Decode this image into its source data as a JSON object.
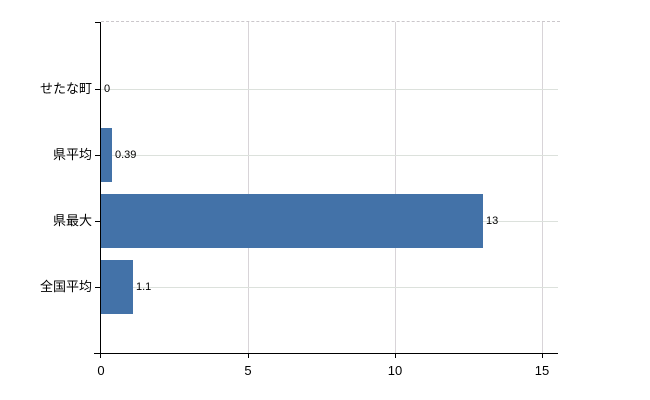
{
  "chart_data": {
    "type": "bar",
    "orientation": "horizontal",
    "title": "",
    "xlabel": "",
    "ylabel": "",
    "categories": [
      "せたな町",
      "県平均",
      "県最大",
      "全国平均"
    ],
    "values": [
      0,
      0.39,
      13,
      1.1
    ],
    "value_labels": [
      "0",
      "0.39",
      "13",
      "1.1"
    ],
    "xlim": [
      0,
      15.55
    ],
    "xticks": [
      0,
      5,
      10,
      15
    ],
    "xtick_labels": [
      "0",
      "5",
      "10",
      "15"
    ],
    "grid": true,
    "legend": false,
    "colors": {
      "bar": "#4372a8",
      "axis": "#000000",
      "gridline_horizontal": "#dce1dc",
      "gridline_vertical": "#d8d4d8",
      "top_border": "#cbc7cb",
      "text": "#000000",
      "background": "#ffffff"
    }
  }
}
